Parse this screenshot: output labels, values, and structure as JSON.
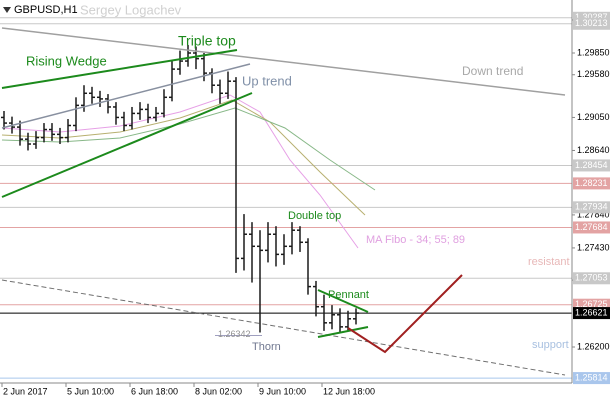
{
  "chart_data": {
    "type": "ohlc",
    "title": "GBPUSD,H1",
    "author": "Sergey Logachev",
    "categories": [
      "2 Jun 2017",
      null,
      null,
      null,
      null,
      null,
      null,
      null,
      "5 Jun 10:00",
      null,
      null,
      null,
      null,
      null,
      null,
      null,
      "6 Jun 18:00",
      null,
      null,
      null,
      null,
      null,
      null,
      null,
      "8 Jun 02:00",
      null,
      null,
      null,
      null,
      null,
      null,
      null,
      "9 Jun 10:00",
      null,
      null,
      null,
      null,
      null,
      null,
      null,
      "12 Jun 18:00",
      null,
      null,
      null,
      null
    ],
    "open": [
      1.2905,
      1.2898,
      1.2893,
      1.2878,
      1.2872,
      1.288,
      1.289,
      1.2884,
      1.288,
      1.2895,
      1.292,
      1.2935,
      1.293,
      1.2928,
      1.2918,
      1.2905,
      1.2895,
      1.291,
      1.2915,
      1.2905,
      1.291,
      1.293,
      1.2965,
      1.2975,
      1.2985,
      1.2978,
      1.296,
      1.2945,
      1.2935,
      1.295,
      1.273,
      1.276,
      1.2745,
      1.274,
      1.276,
      1.2735,
      1.2745,
      1.2765,
      1.275,
      1.2695,
      1.267,
      1.265,
      1.266,
      1.2645,
      1.2655
    ],
    "high": [
      1.2913,
      1.2906,
      1.2901,
      1.2886,
      1.2888,
      1.2898,
      1.2898,
      1.2892,
      1.2903,
      1.293,
      1.2945,
      1.2943,
      1.2938,
      1.2934,
      1.2924,
      1.2912,
      1.2918,
      1.2924,
      1.2922,
      1.2918,
      1.294,
      1.2975,
      1.2988,
      1.2995,
      1.2993,
      1.2985,
      1.2966,
      1.2952,
      1.2962,
      1.2955,
      1.2785,
      1.2775,
      1.2765,
      1.2775,
      1.277,
      1.276,
      1.2775,
      1.277,
      1.2755,
      1.2702,
      1.2685,
      1.2672,
      1.2668,
      1.2665,
      1.2668
    ],
    "low": [
      1.289,
      1.2885,
      1.287,
      1.2864,
      1.2866,
      1.2874,
      1.2876,
      1.2872,
      1.2874,
      1.2888,
      1.2912,
      1.2922,
      1.2918,
      1.291,
      1.2896,
      1.2888,
      1.289,
      1.2902,
      1.2898,
      1.29,
      1.2905,
      1.2925,
      1.2958,
      1.2968,
      1.2965,
      1.295,
      1.2935,
      1.2922,
      1.2928,
      1.2712,
      1.2715,
      1.27,
      1.2638,
      1.2725,
      1.272,
      1.2722,
      1.2735,
      1.2738,
      1.2685,
      1.2658,
      1.264,
      1.2642,
      1.2638,
      1.264,
      1.2648
    ],
    "close": [
      1.2898,
      1.2893,
      1.2878,
      1.2872,
      1.288,
      1.289,
      1.2884,
      1.288,
      1.2895,
      1.292,
      1.2935,
      1.293,
      1.2928,
      1.2918,
      1.2905,
      1.2895,
      1.291,
      1.2915,
      1.2905,
      1.291,
      1.293,
      1.2965,
      1.2975,
      1.2985,
      1.2978,
      1.296,
      1.2945,
      1.2935,
      1.295,
      1.273,
      1.276,
      1.2745,
      1.274,
      1.276,
      1.2735,
      1.2745,
      1.2765,
      1.275,
      1.2695,
      1.267,
      1.265,
      1.266,
      1.2645,
      1.2655,
      1.26621
    ],
    "up_color": "#1a1a1a",
    "down_color": "#1a1a1a",
    "ylim": [
      1.25753,
      1.30508
    ],
    "yticks": [
      {
        "value": 1.3026,
        "label": "1.30260"
      },
      {
        "value": 1.2985,
        "label": "1.29850"
      },
      {
        "value": 1.2958,
        "label": "1.29580"
      },
      {
        "value": 1.2905,
        "label": "1.29050"
      },
      {
        "value": 1.2864,
        "label": "1.28640"
      },
      {
        "value": 1.2784,
        "label": "1.27840"
      },
      {
        "value": 1.2743,
        "label": "1.27430"
      },
      {
        "value": 1.2703,
        "label": "1.27030"
      },
      {
        "value": 1.262,
        "label": "1.26200"
      }
    ],
    "levels": [
      {
        "value": 1.30287,
        "color": "#c8c8c8"
      },
      {
        "value": 1.30213,
        "color": "#c8c8c8"
      },
      {
        "value": 1.28454,
        "color": "#c8c8c8"
      },
      {
        "value": 1.28231,
        "color": "#e3a3a3"
      },
      {
        "value": 1.27934,
        "color": "#c8c8c8"
      },
      {
        "value": 1.27684,
        "color": "#e3a3a3"
      },
      {
        "value": 1.27053,
        "color": "#c8c8c8"
      },
      {
        "value": 1.26725,
        "color": "#e3a3a3"
      },
      {
        "value": 1.26621,
        "color": "#000000"
      },
      {
        "value": 1.25814,
        "color": "#a9c6ec"
      }
    ],
    "thorn_low": 1.26342,
    "annotations": {
      "triple_top": "Triple top",
      "rising_wedge": "Rising Wedge",
      "up_trend": "Up trend",
      "down_trend": "Down trend",
      "double_top": "Double top",
      "ma_fibo": "MA Fibo - 34; 55; 89",
      "resistant": "resistant",
      "pennant": "Pennant",
      "thorn": "Thorn",
      "support": "support"
    }
  }
}
